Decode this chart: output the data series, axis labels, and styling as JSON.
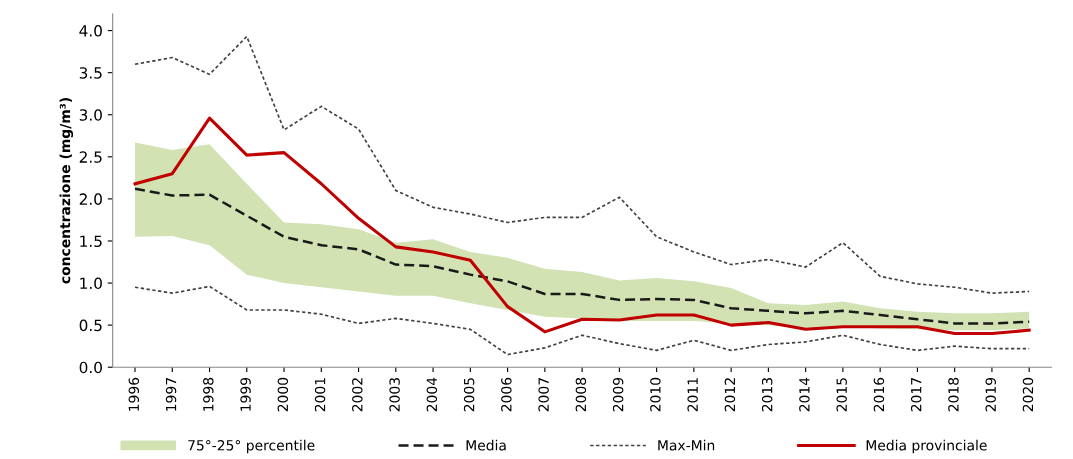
{
  "chart_data": {
    "type": "line",
    "ylabel": "concentrazione (mg/m³)",
    "categories": [
      "1996",
      "1997",
      "1998",
      "1999",
      "2000",
      "2001",
      "2002",
      "2003",
      "2004",
      "2005",
      "2006",
      "2007",
      "2008",
      "2009",
      "2010",
      "2011",
      "2012",
      "2013",
      "2014",
      "2015",
      "2016",
      "2017",
      "2018",
      "2019",
      "2020"
    ],
    "ylim": [
      0,
      4.2
    ],
    "yticks": [
      {
        "value": 0,
        "label": "0.0"
      },
      {
        "value": 0.5,
        "label": "0.5"
      },
      {
        "value": 1,
        "label": "1.0"
      },
      {
        "value": 1.5,
        "label": "1.5"
      },
      {
        "value": 2,
        "label": "2.0"
      },
      {
        "value": 2.5,
        "label": "2.5"
      },
      {
        "value": 3,
        "label": "3.0"
      },
      {
        "value": 3.5,
        "label": "3.5"
      },
      {
        "value": 4,
        "label": "4.0"
      }
    ],
    "grid": false,
    "legend": "bottom",
    "marker": "none",
    "series": [
      {
        "name": "75°-25° percentile",
        "color": "#d3e2b3",
        "values": [
          null,
          null,
          null,
          null,
          null,
          null,
          null,
          null,
          null,
          null,
          null,
          null,
          null,
          null,
          null,
          null,
          null,
          null,
          null,
          null,
          null,
          null,
          null,
          null,
          null
        ],
        "upper": [
          2.67,
          2.58,
          2.65,
          2.18,
          1.72,
          1.7,
          1.64,
          1.48,
          1.52,
          1.37,
          1.3,
          1.17,
          1.13,
          1.03,
          1.06,
          1.02,
          0.94,
          0.76,
          0.74,
          0.78,
          0.7,
          0.66,
          0.64,
          0.64,
          0.66
        ],
        "lower": [
          1.55,
          1.56,
          1.45,
          1.1,
          1.0,
          0.95,
          0.9,
          0.85,
          0.85,
          0.76,
          0.68,
          0.6,
          0.58,
          0.55,
          0.55,
          0.55,
          0.52,
          0.5,
          0.46,
          0.48,
          0.46,
          0.45,
          0.44,
          0.44,
          0.46
        ]
      },
      {
        "name": "Media",
        "color": "#1a1a1a",
        "line_style": "dashed",
        "values": [
          2.12,
          2.04,
          2.05,
          1.8,
          1.55,
          1.45,
          1.4,
          1.22,
          1.2,
          1.1,
          1.02,
          0.87,
          0.87,
          0.8,
          0.81,
          0.8,
          0.7,
          0.67,
          0.64,
          0.67,
          0.62,
          0.57,
          0.52,
          0.52,
          0.54
        ]
      },
      {
        "name": "Max-Min",
        "color": "#404040",
        "line_style": "dotted",
        "values": [
          3.6,
          3.68,
          3.48,
          3.93,
          2.82,
          3.1,
          2.83,
          2.1,
          1.9,
          1.82,
          1.72,
          1.78,
          1.78,
          2.02,
          1.55,
          1.37,
          1.22,
          1.28,
          1.19,
          1.48,
          1.08,
          0.99,
          0.95,
          0.88,
          0.9
        ]
      },
      {
        "color": "#404040",
        "line_style": "dotted",
        "values": [
          0.95,
          0.88,
          0.96,
          0.68,
          0.68,
          0.63,
          0.52,
          0.58,
          0.52,
          0.45,
          0.15,
          0.23,
          0.38,
          0.28,
          0.2,
          0.32,
          0.2,
          0.27,
          0.3,
          0.38,
          0.27,
          0.2,
          0.25,
          0.22,
          0.22
        ]
      },
      {
        "name": "Media provinciale",
        "color": "#c00000",
        "line_style": "solid",
        "values": [
          2.18,
          2.3,
          2.96,
          2.52,
          2.55,
          2.18,
          1.77,
          1.43,
          1.37,
          1.27,
          0.72,
          0.42,
          0.57,
          0.56,
          0.62,
          0.62,
          0.5,
          0.53,
          0.45,
          0.48,
          0.48,
          0.48,
          0.4,
          0.4,
          0.44
        ]
      }
    ]
  }
}
